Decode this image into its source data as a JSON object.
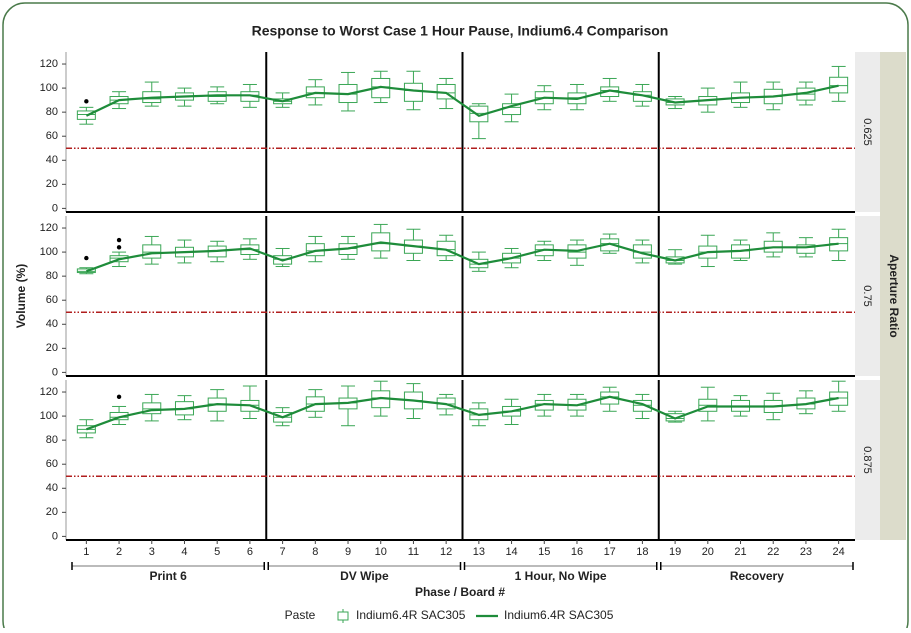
{
  "chart_data": {
    "type": "box",
    "title": "Response to Worst Case 1 Hour Pause, Indium6.4 Comparison",
    "ylabel": "Volume (%)",
    "xlabel": "Phase / Board #",
    "facet_label": "Aperture Ratio",
    "ylim": [
      -3,
      130
    ],
    "yticks": [
      0,
      20,
      40,
      60,
      80,
      100,
      120
    ],
    "reference_line": {
      "value": 50,
      "color": "#b01e1e"
    },
    "phases": [
      {
        "name": "Print 6",
        "boards": [
          1,
          2,
          3,
          4,
          5,
          6
        ]
      },
      {
        "name": "DV Wipe",
        "boards": [
          7,
          8,
          9,
          10,
          11,
          12
        ]
      },
      {
        "name": "1 Hour, No Wipe",
        "boards": [
          13,
          14,
          15,
          16,
          17,
          18
        ]
      },
      {
        "name": "Recovery",
        "boards": [
          19,
          20,
          21,
          22,
          23,
          24
        ]
      }
    ],
    "legend_title": "Paste",
    "series": [
      {
        "name": "Indium6.4R SAC305",
        "color": "#3aa655"
      },
      {
        "name": "Indium6.4R SAC305",
        "color": "#1e8c3a"
      }
    ],
    "panels": [
      {
        "label": "0.625",
        "boxes": [
          [
            70,
            74,
            78,
            81,
            84
          ],
          [
            83,
            87,
            90,
            93,
            97
          ],
          [
            85,
            88,
            91,
            97,
            105
          ],
          [
            85,
            90,
            93,
            96,
            100
          ],
          [
            87,
            89,
            93,
            97,
            101
          ],
          [
            84,
            89,
            94,
            97,
            103
          ],
          [
            84,
            87,
            89,
            91,
            96
          ],
          [
            86,
            92,
            96,
            101,
            107
          ],
          [
            81,
            88,
            95,
            103,
            113
          ],
          [
            88,
            92,
            101,
            108,
            114
          ],
          [
            82,
            89,
            98,
            104,
            114
          ],
          [
            83,
            91,
            96,
            103,
            108
          ],
          [
            58,
            72,
            79,
            85,
            87
          ],
          [
            72,
            78,
            84,
            87,
            95
          ],
          [
            82,
            87,
            92,
            97,
            102
          ],
          [
            82,
            87,
            92,
            96,
            103
          ],
          [
            89,
            93,
            98,
            101,
            108
          ],
          [
            85,
            89,
            94,
            97,
            103
          ],
          [
            83,
            86,
            88,
            91,
            93
          ],
          [
            80,
            86,
            90,
            93,
            100
          ],
          [
            84,
            88,
            92,
            96,
            105
          ],
          [
            82,
            87,
            93,
            99,
            105
          ],
          [
            86,
            90,
            95,
            100,
            105
          ],
          [
            89,
            96,
            102,
            109,
            118
          ]
        ],
        "means": [
          77,
          90,
          92,
          93,
          94,
          94,
          89,
          96,
          95,
          101,
          98,
          96,
          77,
          85,
          92,
          91,
          98,
          94,
          88,
          90,
          92,
          93,
          96,
          102
        ],
        "outliers": [
          {
            "x": 1,
            "value": 89
          }
        ]
      },
      {
        "label": "0.75",
        "boxes": [
          [
            82,
            83,
            84,
            86,
            87
          ],
          [
            88,
            92,
            95,
            97,
            100
          ],
          [
            90,
            95,
            100,
            106,
            113
          ],
          [
            91,
            96,
            100,
            104,
            110
          ],
          [
            92,
            96,
            101,
            105,
            109
          ],
          [
            94,
            98,
            102,
            106,
            111
          ],
          [
            88,
            90,
            94,
            97,
            103
          ],
          [
            92,
            97,
            101,
            107,
            113
          ],
          [
            94,
            98,
            103,
            107,
            113
          ],
          [
            95,
            101,
            107,
            116,
            123
          ],
          [
            93,
            99,
            105,
            110,
            119
          ],
          [
            93,
            97,
            102,
            109,
            114
          ],
          [
            84,
            87,
            90,
            94,
            100
          ],
          [
            87,
            91,
            95,
            99,
            103
          ],
          [
            93,
            97,
            102,
            106,
            109
          ],
          [
            89,
            95,
            100,
            106,
            110
          ],
          [
            99,
            101,
            107,
            111,
            115
          ],
          [
            91,
            95,
            100,
            106,
            110
          ],
          [
            90,
            91,
            93,
            96,
            102
          ],
          [
            88,
            95,
            100,
            105,
            114
          ],
          [
            93,
            95,
            101,
            106,
            110
          ],
          [
            96,
            100,
            104,
            109,
            116
          ],
          [
            96,
            99,
            104,
            106,
            112
          ],
          [
            93,
            101,
            107,
            112,
            119
          ]
        ],
        "means": [
          84,
          94,
          99,
          100,
          101,
          103,
          93,
          101,
          103,
          108,
          105,
          102,
          90,
          95,
          102,
          101,
          107,
          99,
          93,
          100,
          101,
          104,
          104,
          107
        ],
        "outliers": [
          {
            "x": 1,
            "value": 95
          },
          {
            "x": 2,
            "value": 104
          },
          {
            "x": 2,
            "value": 110
          }
        ]
      },
      {
        "label": "0.875",
        "boxes": [
          [
            82,
            86,
            89,
            92,
            97
          ],
          [
            93,
            97,
            99,
            103,
            108
          ],
          [
            96,
            102,
            106,
            111,
            118
          ],
          [
            97,
            101,
            106,
            112,
            117
          ],
          [
            96,
            104,
            110,
            115,
            122
          ],
          [
            98,
            104,
            109,
            113,
            125
          ],
          [
            92,
            95,
            99,
            103,
            107
          ],
          [
            99,
            104,
            110,
            116,
            122
          ],
          [
            92,
            106,
            111,
            115,
            125
          ],
          [
            100,
            107,
            115,
            121,
            129
          ],
          [
            98,
            106,
            113,
            120,
            127
          ],
          [
            101,
            106,
            110,
            115,
            118
          ],
          [
            92,
            97,
            101,
            106,
            111
          ],
          [
            93,
            100,
            104,
            108,
            114
          ],
          [
            100,
            105,
            110,
            113,
            118
          ],
          [
            100,
            105,
            109,
            114,
            118
          ],
          [
            104,
            110,
            116,
            120,
            124
          ],
          [
            98,
            104,
            109,
            113,
            118
          ],
          [
            95,
            96,
            98,
            102,
            104
          ],
          [
            96,
            104,
            109,
            114,
            124
          ],
          [
            100,
            104,
            108,
            113,
            117
          ],
          [
            97,
            103,
            108,
            113,
            119
          ],
          [
            102,
            106,
            110,
            115,
            121
          ],
          [
            104,
            109,
            115,
            120,
            129
          ]
        ],
        "means": [
          89,
          99,
          105,
          106,
          110,
          109,
          99,
          110,
          111,
          115,
          113,
          110,
          101,
          104,
          110,
          109,
          116,
          110,
          98,
          108,
          108,
          108,
          110,
          115
        ],
        "outliers": [
          {
            "x": 2,
            "value": 116
          }
        ]
      }
    ]
  }
}
